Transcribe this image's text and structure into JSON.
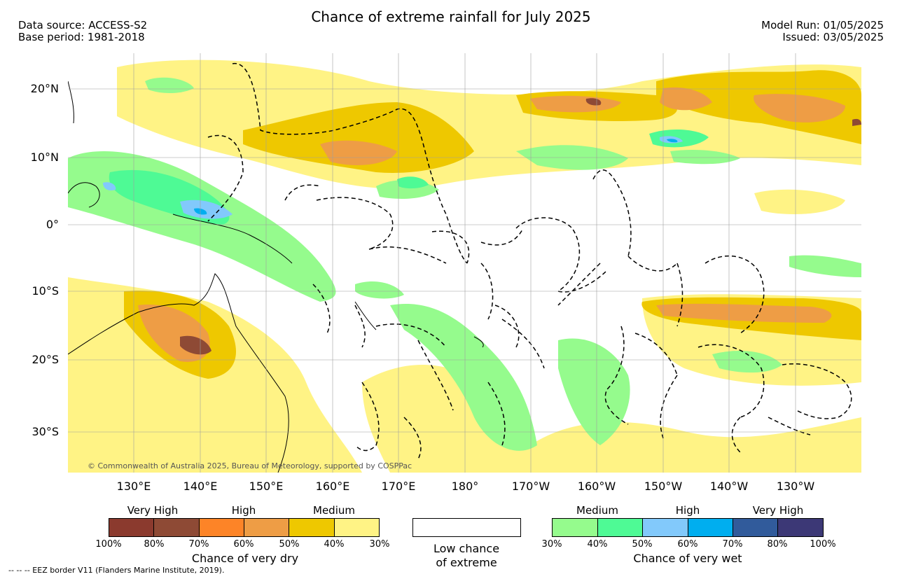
{
  "title": "Chance of extreme rainfall for July 2025",
  "data_source": "Data source: ACCESS-S2",
  "base_period": "Base period: 1981-2018",
  "model_run": "Model Run: 01/05/2025",
  "issued": "Issued: 03/05/2025",
  "copyright": "© Commonwealth of Australia 2025, Bureau of Meteorology, supported by COSPPac",
  "footer": "-- -- -- EEZ border V11 (Flanders Marine Institute, 2019).",
  "lat_labels": [
    "20°N",
    "10°N",
    "0°",
    "10°S",
    "20°S",
    "30°S"
  ],
  "lon_labels": [
    "130°E",
    "140°E",
    "150°E",
    "160°E",
    "170°E",
    "180°",
    "170°W",
    "160°W",
    "150°W",
    "140°W",
    "130°W"
  ],
  "dry_legend": {
    "headers": [
      "Very High",
      "High",
      "Medium"
    ],
    "ticks": [
      "100%",
      "80%",
      "70%",
      "60%",
      "50%",
      "40%",
      "30%"
    ],
    "colors": [
      "#8b3a2e",
      "#8e4a35",
      "#fd8427",
      "#ee9d45",
      "#eec800",
      "#fff385"
    ],
    "title": "Chance of very dry"
  },
  "low_legend": {
    "line1": "Low chance",
    "line2": "of extreme",
    "color": "#ffffff"
  },
  "wet_legend": {
    "headers": [
      "Medium",
      "High",
      "Very High"
    ],
    "ticks": [
      "30%",
      "40%",
      "50%",
      "60%",
      "70%",
      "80%",
      "100%"
    ],
    "colors": [
      "#95fb8d",
      "#4efa95",
      "#82c9fb",
      "#00aeef",
      "#315b9b",
      "#3c3876"
    ],
    "title": "Chance of very wet"
  }
}
